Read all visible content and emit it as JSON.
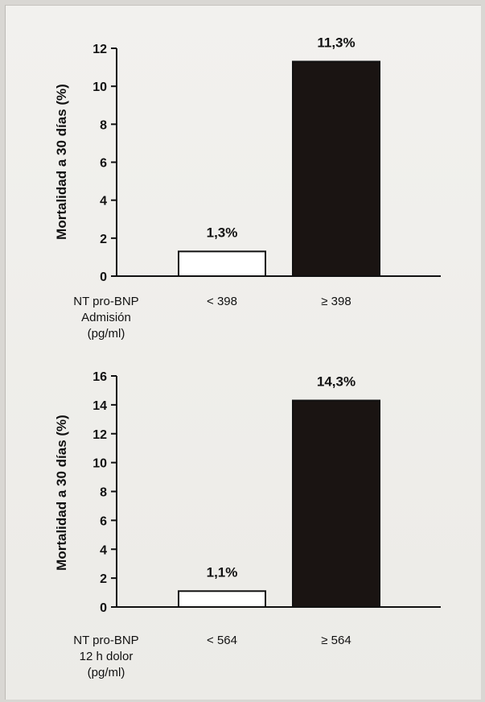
{
  "chart_data": [
    {
      "type": "bar",
      "ylabel": "Mortalidad a 30 días (%)",
      "ylim": [
        0,
        12
      ],
      "yticks": [
        "0",
        "2",
        "4",
        "6",
        "8",
        "10",
        "12"
      ],
      "group_label": [
        "NT pro-BNP",
        "Admisión",
        "(pg/ml)"
      ],
      "categories": [
        "< 398",
        "≥ 398"
      ],
      "values": [
        1.3,
        11.3
      ],
      "value_labels": [
        "1,3%",
        "11,3%"
      ],
      "bar_colors": [
        "#ffffff",
        "#1a1412"
      ]
    },
    {
      "type": "bar",
      "ylabel": "Mortalidad a 30 días (%)",
      "ylim": [
        0,
        16
      ],
      "yticks": [
        "0",
        "2",
        "4",
        "6",
        "8",
        "10",
        "12",
        "14",
        "16"
      ],
      "group_label": [
        "NT pro-BNP",
        "12 h dolor",
        "(pg/ml)"
      ],
      "categories": [
        "< 564",
        "≥ 564"
      ],
      "values": [
        1.1,
        14.3
      ],
      "value_labels": [
        "1,1%",
        "14,3%"
      ],
      "bar_colors": [
        "#ffffff",
        "#1a1412"
      ]
    }
  ]
}
